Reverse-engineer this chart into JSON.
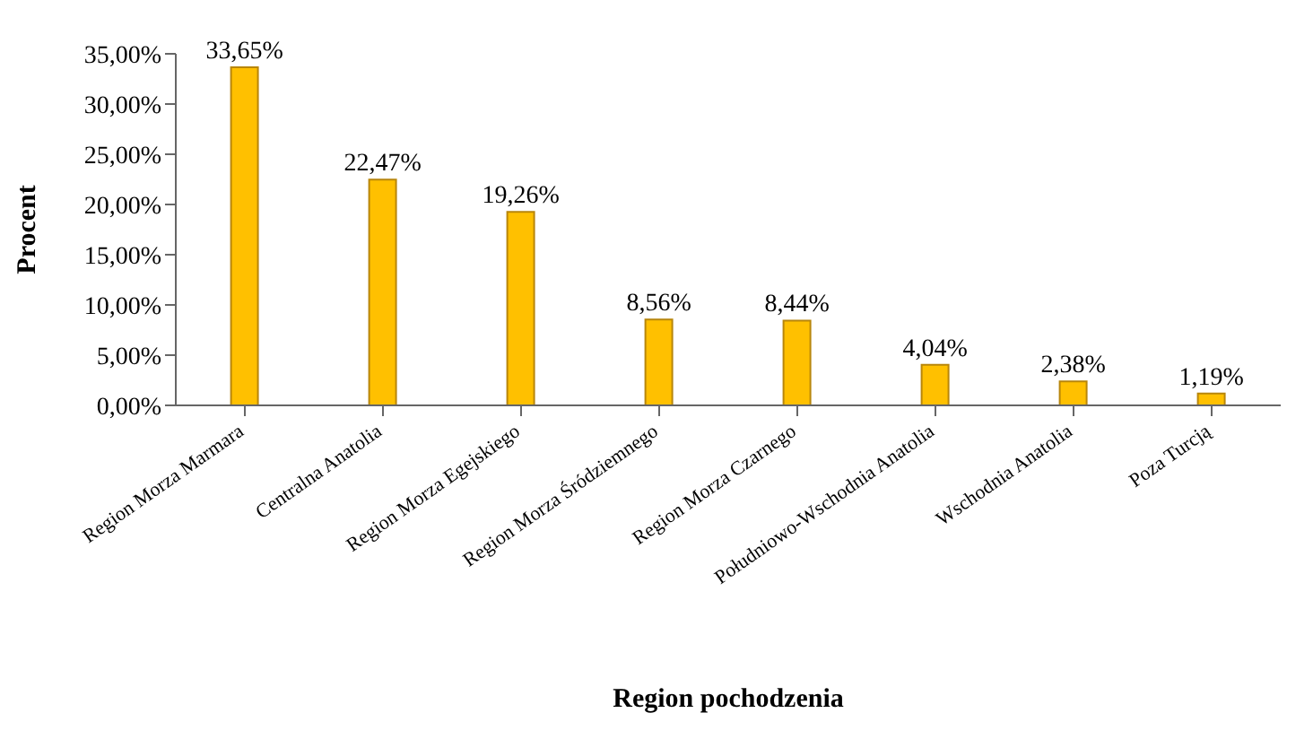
{
  "chart_data": {
    "type": "bar",
    "xlabel": "Region pochodzenia",
    "ylabel": "Procent",
    "categories": [
      "Region Morza Marmara",
      "Centralna Anatolia",
      "Region Morza Egejskiego",
      "Region Morza Śródziemnego",
      "Region Morza Czarnego",
      "Południowo-Wschodnia Anatolia",
      "Wschodnia Anatolia",
      "Poza Turcją"
    ],
    "values": [
      33.65,
      22.47,
      19.26,
      8.56,
      8.44,
      4.04,
      2.38,
      1.19
    ],
    "value_labels": [
      "33,65%",
      "22,47%",
      "19,26%",
      "8,56%",
      "8,44%",
      "4,04%",
      "2,38%",
      "1,19%"
    ],
    "color": "#ffc000",
    "ylim": [
      0,
      35
    ],
    "yticks": [
      {
        "value": 0,
        "label": "0,00%"
      },
      {
        "value": 5,
        "label": "5,00%"
      },
      {
        "value": 10,
        "label": "10,00%"
      },
      {
        "value": 15,
        "label": "15,00%"
      },
      {
        "value": 20,
        "label": "20,00%"
      },
      {
        "value": 25,
        "label": "25,00%"
      },
      {
        "value": 30,
        "label": "30,00%"
      },
      {
        "value": 35,
        "label": "35,00%"
      }
    ],
    "grid": false,
    "legend": false
  }
}
